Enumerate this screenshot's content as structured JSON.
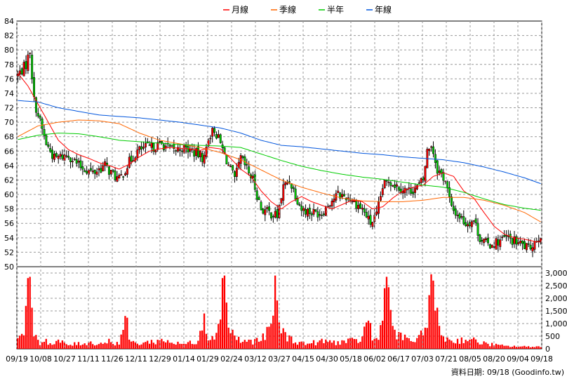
{
  "chart_data": {
    "type": "candlestick",
    "legend": {
      "placement": "top-center",
      "items": [
        {
          "label": "月線",
          "color": "#ff0000"
        },
        {
          "label": "季線",
          "color": "#ff6600"
        },
        {
          "label": "半年",
          "color": "#00cc00"
        },
        {
          "label": "年線",
          "color": "#0055dd"
        }
      ]
    },
    "price_axis": {
      "min": 50,
      "max": 84,
      "step": 2,
      "side": "left",
      "ticks": [
        "84",
        "82",
        "80",
        "78",
        "76",
        "74",
        "72",
        "70",
        "68",
        "66",
        "64",
        "62",
        "60",
        "58",
        "56",
        "54",
        "52",
        "50"
      ]
    },
    "volume_axis": {
      "min": 0,
      "max": 3000,
      "side": "right",
      "ticks": [
        "3,000",
        "2,500",
        "2,000",
        "1,500",
        "1,000",
        "500",
        "0"
      ]
    },
    "x_ticks": [
      "09/19",
      "10/08",
      "10/27",
      "11/11",
      "11/26",
      "12/11",
      "12/29",
      "01/14",
      "01/29",
      "02/24",
      "03/12",
      "03/27",
      "04/15",
      "04/30",
      "05/18",
      "06/02",
      "06/17",
      "07/03",
      "07/21",
      "08/05",
      "08/20",
      "09/04",
      "09/18"
    ],
    "grid": true,
    "colors": {
      "up": "#ff0000",
      "down": "#00cc00",
      "volume": "#ff0000",
      "grid": "#999999"
    },
    "close_anchors": [
      [
        0,
        76.5
      ],
      [
        4,
        78
      ],
      [
        6,
        80
      ],
      [
        8,
        73
      ],
      [
        10,
        71
      ],
      [
        14,
        67
      ],
      [
        18,
        65
      ],
      [
        25,
        65.5
      ],
      [
        30,
        64
      ],
      [
        37,
        63
      ],
      [
        43,
        64
      ],
      [
        46,
        63
      ],
      [
        50,
        62
      ],
      [
        55,
        64.5
      ],
      [
        59,
        66
      ],
      [
        63,
        66.5
      ],
      [
        66,
        66.5
      ],
      [
        71,
        67
      ],
      [
        77,
        66
      ],
      [
        81,
        66.5
      ],
      [
        86,
        66
      ],
      [
        92,
        65
      ],
      [
        94,
        68
      ],
      [
        97,
        69
      ],
      [
        100,
        67
      ],
      [
        104,
        64
      ],
      [
        107,
        62
      ],
      [
        110,
        65
      ],
      [
        116,
        62
      ],
      [
        120,
        58
      ],
      [
        124,
        57.5
      ],
      [
        128,
        57
      ],
      [
        131,
        61
      ],
      [
        134,
        62
      ],
      [
        137,
        60
      ],
      [
        140,
        58
      ],
      [
        145,
        57.5
      ],
      [
        150,
        57.5
      ],
      [
        154,
        59
      ],
      [
        158,
        60
      ],
      [
        164,
        59.5
      ],
      [
        170,
        58
      ],
      [
        174,
        56
      ],
      [
        177,
        57
      ],
      [
        180,
        61
      ],
      [
        183,
        62
      ],
      [
        188,
        61
      ],
      [
        193,
        60.5
      ],
      [
        197,
        61
      ],
      [
        200,
        62
      ],
      [
        202,
        66
      ],
      [
        204,
        67
      ],
      [
        207,
        63.5
      ],
      [
        211,
        62
      ],
      [
        214,
        58
      ],
      [
        218,
        57
      ],
      [
        221,
        56
      ],
      [
        225,
        56.5
      ],
      [
        228,
        54
      ],
      [
        232,
        53
      ],
      [
        237,
        53.5
      ],
      [
        241,
        54
      ],
      [
        245,
        53.5
      ],
      [
        249,
        53
      ],
      [
        252,
        52.5
      ],
      [
        255,
        53.5
      ],
      [
        258,
        54.5
      ]
    ],
    "ma": [
      {
        "name": "月線",
        "anchors": [
          [
            0,
            76.8
          ],
          [
            5,
            75
          ],
          [
            10,
            72.5
          ],
          [
            15,
            70
          ],
          [
            20,
            67.5
          ],
          [
            25,
            66.2
          ],
          [
            30,
            65.5
          ],
          [
            35,
            65
          ],
          [
            40,
            64.4
          ],
          [
            45,
            64
          ],
          [
            50,
            63.5
          ],
          [
            55,
            64.2
          ],
          [
            60,
            65.2
          ],
          [
            65,
            66
          ],
          [
            70,
            66.3
          ],
          [
            75,
            66.5
          ],
          [
            80,
            66.4
          ],
          [
            85,
            66.3
          ],
          [
            90,
            66.1
          ],
          [
            95,
            66.5
          ],
          [
            100,
            66.3
          ],
          [
            105,
            65
          ],
          [
            110,
            63.5
          ],
          [
            115,
            62.5
          ],
          [
            120,
            60.5
          ],
          [
            125,
            59
          ],
          [
            130,
            58
          ],
          [
            135,
            59
          ],
          [
            140,
            59.7
          ],
          [
            145,
            59
          ],
          [
            150,
            58.5
          ],
          [
            155,
            58
          ],
          [
            160,
            58.6
          ],
          [
            165,
            59.2
          ],
          [
            170,
            59
          ],
          [
            175,
            58
          ],
          [
            180,
            58.3
          ],
          [
            185,
            59.5
          ],
          [
            190,
            60.5
          ],
          [
            195,
            61
          ],
          [
            200,
            61.3
          ],
          [
            205,
            62.5
          ],
          [
            210,
            63
          ],
          [
            215,
            62.5
          ],
          [
            220,
            60.5
          ],
          [
            225,
            59.5
          ],
          [
            230,
            57.5
          ],
          [
            235,
            55.6
          ],
          [
            240,
            54.5
          ],
          [
            245,
            54
          ],
          [
            250,
            53.8
          ],
          [
            255,
            53.5
          ],
          [
            258,
            53.4
          ]
        ]
      },
      {
        "name": "季線",
        "anchors": [
          [
            0,
            68
          ],
          [
            10,
            69.5
          ],
          [
            20,
            70
          ],
          [
            30,
            70.3
          ],
          [
            40,
            70.2
          ],
          [
            50,
            69.8
          ],
          [
            60,
            68.5
          ],
          [
            70,
            67.5
          ],
          [
            80,
            67
          ],
          [
            90,
            66.5
          ],
          [
            100,
            65.8
          ],
          [
            110,
            64.8
          ],
          [
            120,
            63.4
          ],
          [
            130,
            62
          ],
          [
            140,
            61
          ],
          [
            150,
            60.2
          ],
          [
            160,
            59.5
          ],
          [
            170,
            59.1
          ],
          [
            180,
            59
          ],
          [
            190,
            59
          ],
          [
            200,
            59.2
          ],
          [
            210,
            59.6
          ],
          [
            220,
            59.6
          ],
          [
            230,
            59.2
          ],
          [
            240,
            58.5
          ],
          [
            250,
            57.5
          ],
          [
            258,
            56.2
          ]
        ]
      },
      {
        "name": "半年",
        "anchors": [
          [
            0,
            67.6
          ],
          [
            10,
            68.2
          ],
          [
            20,
            68.5
          ],
          [
            30,
            68.4
          ],
          [
            40,
            68
          ],
          [
            50,
            67.5
          ],
          [
            60,
            67.3
          ],
          [
            70,
            67.1
          ],
          [
            80,
            66.9
          ],
          [
            90,
            66.8
          ],
          [
            100,
            66.7
          ],
          [
            110,
            66.5
          ],
          [
            120,
            65.6
          ],
          [
            130,
            64.7
          ],
          [
            140,
            63.9
          ],
          [
            150,
            63.3
          ],
          [
            160,
            62.8
          ],
          [
            170,
            62.4
          ],
          [
            180,
            62.1
          ],
          [
            190,
            61.7
          ],
          [
            200,
            61.3
          ],
          [
            210,
            61
          ],
          [
            220,
            60.3
          ],
          [
            230,
            59.4
          ],
          [
            240,
            58.6
          ],
          [
            250,
            58.1
          ],
          [
            258,
            57.8
          ]
        ]
      },
      {
        "name": "年線",
        "anchors": [
          [
            0,
            73
          ],
          [
            10,
            72.8
          ],
          [
            20,
            72
          ],
          [
            30,
            71.5
          ],
          [
            40,
            71
          ],
          [
            50,
            70.8
          ],
          [
            60,
            70.6
          ],
          [
            70,
            70.3
          ],
          [
            80,
            70
          ],
          [
            90,
            69.6
          ],
          [
            100,
            69.2
          ],
          [
            110,
            68.5
          ],
          [
            120,
            67.5
          ],
          [
            130,
            66.8
          ],
          [
            140,
            66.6
          ],
          [
            150,
            66.3
          ],
          [
            160,
            66
          ],
          [
            170,
            65.7
          ],
          [
            180,
            65.5
          ],
          [
            190,
            65.2
          ],
          [
            200,
            65
          ],
          [
            210,
            64.8
          ],
          [
            220,
            64.4
          ],
          [
            230,
            63.8
          ],
          [
            240,
            63.1
          ],
          [
            250,
            62.3
          ],
          [
            258,
            61.5
          ]
        ]
      }
    ],
    "volume_anchors": [
      [
        0,
        300
      ],
      [
        3,
        900
      ],
      [
        5,
        2800
      ],
      [
        7,
        1200
      ],
      [
        9,
        500
      ],
      [
        11,
        200
      ],
      [
        13,
        400
      ],
      [
        17,
        150
      ],
      [
        20,
        300
      ],
      [
        25,
        150
      ],
      [
        30,
        200
      ],
      [
        35,
        250
      ],
      [
        40,
        200
      ],
      [
        45,
        300
      ],
      [
        50,
        200
      ],
      [
        53,
        1300
      ],
      [
        55,
        400
      ],
      [
        58,
        200
      ],
      [
        63,
        250
      ],
      [
        68,
        300
      ],
      [
        73,
        350
      ],
      [
        78,
        200
      ],
      [
        83,
        200
      ],
      [
        88,
        300
      ],
      [
        91,
        900
      ],
      [
        94,
        600
      ],
      [
        97,
        300
      ],
      [
        100,
        1800
      ],
      [
        102,
        2800
      ],
      [
        104,
        900
      ],
      [
        107,
        500
      ],
      [
        110,
        300
      ],
      [
        115,
        300
      ],
      [
        120,
        350
      ],
      [
        125,
        800
      ],
      [
        127,
        2900
      ],
      [
        129,
        1000
      ],
      [
        132,
        500
      ],
      [
        137,
        300
      ],
      [
        142,
        200
      ],
      [
        147,
        250
      ],
      [
        152,
        300
      ],
      [
        157,
        250
      ],
      [
        162,
        300
      ],
      [
        167,
        300
      ],
      [
        170,
        400
      ],
      [
        173,
        1400
      ],
      [
        175,
        300
      ],
      [
        177,
        400
      ],
      [
        180,
        1000
      ],
      [
        182,
        2800
      ],
      [
        184,
        1200
      ],
      [
        187,
        500
      ],
      [
        192,
        400
      ],
      [
        197,
        300
      ],
      [
        200,
        600
      ],
      [
        202,
        1500
      ],
      [
        204,
        2950
      ],
      [
        206,
        1500
      ],
      [
        208,
        800
      ],
      [
        211,
        400
      ],
      [
        216,
        300
      ],
      [
        221,
        400
      ],
      [
        226,
        300
      ],
      [
        231,
        200
      ],
      [
        236,
        150
      ],
      [
        241,
        100
      ],
      [
        246,
        100
      ],
      [
        251,
        80
      ],
      [
        255,
        100
      ],
      [
        258,
        80
      ]
    ],
    "spikes": {
      "5": 2800,
      "6": 2850,
      "53": 1300,
      "92": 1400,
      "101": 2800,
      "102": 2900,
      "127": 2900,
      "181": 2400,
      "182": 2850,
      "204": 2950,
      "205": 2700
    },
    "footer": "資料日期: 09/18  (Goodinfo.tw)"
  }
}
